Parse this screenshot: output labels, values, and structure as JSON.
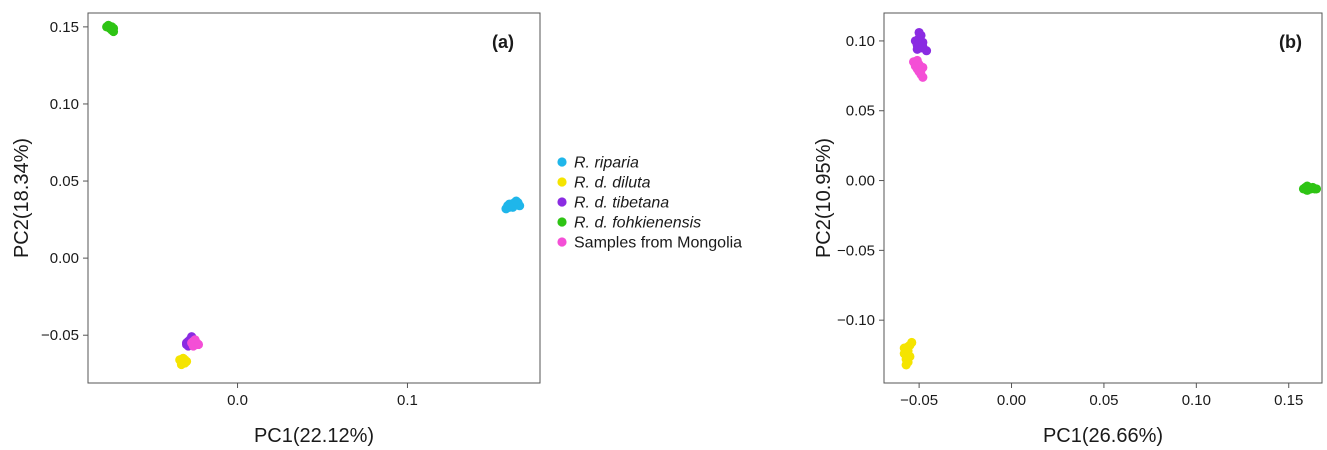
{
  "chart_data": [
    {
      "type": "scatter",
      "panel_label": "(a)",
      "xlabel": "PC1(22.12%)",
      "ylabel": "PC2(18.34%)",
      "xlim": [
        -0.088,
        0.178
      ],
      "ylim": [
        -0.081,
        0.159
      ],
      "xticks": [
        "0.0",
        "0.1"
      ],
      "xtick_values": [
        0.0,
        0.1
      ],
      "yticks": [
        "0.15",
        "0.10",
        "0.05",
        "0.00",
        "−0.05"
      ],
      "ytick_values": [
        0.15,
        0.1,
        0.05,
        0.0,
        -0.05
      ],
      "grid": false,
      "series": [
        {
          "name": "R. riparia",
          "color": "#1fb6ea",
          "points": [
            [
              0.158,
              0.032
            ],
            [
              0.159,
              0.034
            ],
            [
              0.16,
              0.033
            ],
            [
              0.161,
              0.035
            ],
            [
              0.162,
              0.034
            ],
            [
              0.163,
              0.036
            ],
            [
              0.164,
              0.035
            ],
            [
              0.165,
              0.036
            ],
            [
              0.166,
              0.034
            ],
            [
              0.16,
              0.035
            ],
            [
              0.162,
              0.033
            ],
            [
              0.164,
              0.037
            ]
          ]
        },
        {
          "name": "R. d. diluta",
          "color": "#f5e400",
          "points": [
            [
              -0.034,
              -0.066
            ],
            [
              -0.033,
              -0.067
            ],
            [
              -0.032,
              -0.068
            ],
            [
              -0.031,
              -0.066
            ],
            [
              -0.032,
              -0.065
            ],
            [
              -0.033,
              -0.069
            ],
            [
              -0.031,
              -0.068
            ],
            [
              -0.03,
              -0.067
            ]
          ]
        },
        {
          "name": "R. d. tibetana",
          "color": "#8a2be2",
          "points": [
            [
              -0.03,
              -0.055
            ],
            [
              -0.029,
              -0.054
            ],
            [
              -0.028,
              -0.056
            ],
            [
              -0.027,
              -0.055
            ],
            [
              -0.028,
              -0.053
            ],
            [
              -0.027,
              -0.051
            ],
            [
              -0.029,
              -0.057
            ],
            [
              -0.03,
              -0.056
            ]
          ]
        },
        {
          "name": "R. d. fohkienensis",
          "color": "#2ec414",
          "points": [
            [
              -0.077,
              0.15
            ],
            [
              -0.076,
              0.151
            ],
            [
              -0.075,
              0.149
            ],
            [
              -0.074,
              0.148
            ],
            [
              -0.073,
              0.147
            ],
            [
              -0.074,
              0.15
            ],
            [
              -0.073,
              0.149
            ]
          ]
        },
        {
          "name": "Samples from Mongolia",
          "color": "#f44fd6",
          "points": [
            [
              -0.027,
              -0.055
            ],
            [
              -0.026,
              -0.054
            ],
            [
              -0.025,
              -0.056
            ],
            [
              -0.024,
              -0.055
            ],
            [
              -0.026,
              -0.057
            ],
            [
              -0.025,
              -0.053
            ],
            [
              -0.023,
              -0.056
            ]
          ]
        }
      ]
    },
    {
      "type": "scatter",
      "panel_label": "(b)",
      "xlabel": "PC1(26.66%)",
      "ylabel": "PC2(10.95%)",
      "xlim": [
        -0.069,
        0.168
      ],
      "ylim": [
        -0.145,
        0.12
      ],
      "xticks": [
        "−0.05",
        "0.00",
        "0.05",
        "0.10",
        "0.15"
      ],
      "xtick_values": [
        -0.05,
        0.0,
        0.05,
        0.1,
        0.15
      ],
      "yticks": [
        "0.10",
        "0.05",
        "0.00",
        "−0.05",
        "−0.10"
      ],
      "ytick_values": [
        0.1,
        0.05,
        0.0,
        -0.05,
        -0.1
      ],
      "grid": false,
      "series": [
        {
          "name": "R. riparia",
          "color": "#1fb6ea",
          "points": []
        },
        {
          "name": "R. d. diluta",
          "color": "#f5e400",
          "points": [
            [
              -0.058,
              -0.12
            ],
            [
              -0.057,
              -0.125
            ],
            [
              -0.056,
              -0.13
            ],
            [
              -0.057,
              -0.128
            ],
            [
              -0.058,
              -0.124
            ],
            [
              -0.055,
              -0.118
            ],
            [
              -0.056,
              -0.122
            ],
            [
              -0.055,
              -0.126
            ],
            [
              -0.057,
              -0.132
            ],
            [
              -0.056,
              -0.119
            ],
            [
              -0.054,
              -0.116
            ]
          ]
        },
        {
          "name": "R. d. tibetana",
          "color": "#8a2be2",
          "points": [
            [
              -0.052,
              0.1
            ],
            [
              -0.051,
              0.097
            ],
            [
              -0.05,
              0.102
            ],
            [
              -0.049,
              0.095
            ],
            [
              -0.05,
              0.098
            ],
            [
              -0.051,
              0.094
            ],
            [
              -0.049,
              0.104
            ],
            [
              -0.048,
              0.099
            ],
            [
              -0.046,
              0.093
            ],
            [
              -0.05,
              0.106
            ],
            [
              -0.048,
              0.096
            ]
          ]
        },
        {
          "name": "R. d. fohkienensis",
          "color": "#2ec414",
          "points": [
            [
              0.158,
              -0.006
            ],
            [
              0.159,
              -0.005
            ],
            [
              0.16,
              -0.007
            ],
            [
              0.161,
              -0.005
            ],
            [
              0.162,
              -0.006
            ],
            [
              0.163,
              -0.005
            ],
            [
              0.164,
              -0.006
            ],
            [
              0.165,
              -0.006
            ],
            [
              0.16,
              -0.004
            ]
          ]
        },
        {
          "name": "Samples from Mongolia",
          "color": "#f44fd6",
          "points": [
            [
              -0.053,
              0.085
            ],
            [
              -0.052,
              0.082
            ],
            [
              -0.051,
              0.08
            ],
            [
              -0.05,
              0.078
            ],
            [
              -0.049,
              0.076
            ],
            [
              -0.048,
              0.074
            ],
            [
              -0.05,
              0.083
            ],
            [
              -0.049,
              0.079
            ],
            [
              -0.051,
              0.086
            ],
            [
              -0.048,
              0.081
            ]
          ]
        }
      ]
    }
  ],
  "legend": {
    "position": "between-panels",
    "items": [
      {
        "label": "R. riparia",
        "color": "#1fb6ea",
        "italic": true
      },
      {
        "label": "R. d. diluta",
        "color": "#f5e400",
        "italic": true
      },
      {
        "label": "R. d. tibetana",
        "color": "#8a2be2",
        "italic": true
      },
      {
        "label": "R. d. fohkienensis",
        "color": "#2ec414",
        "italic": true
      },
      {
        "label": "Samples from Mongolia",
        "color": "#f44fd6",
        "italic": false
      }
    ]
  }
}
